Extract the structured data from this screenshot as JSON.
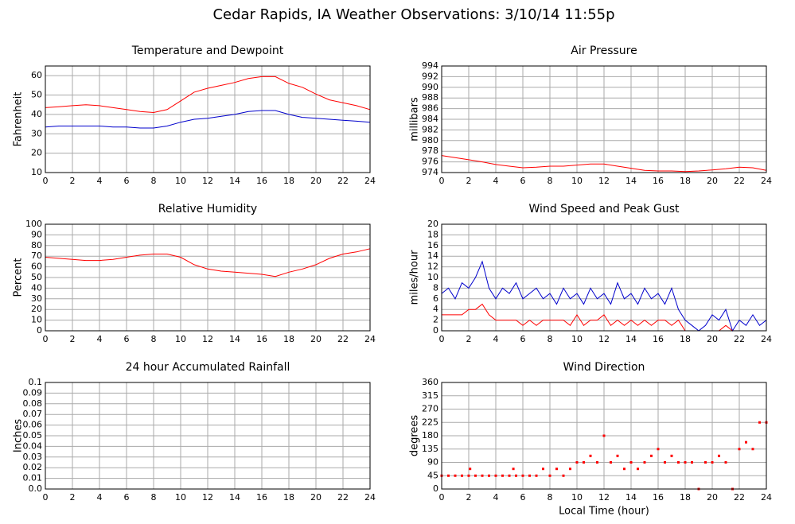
{
  "title": "Cedar Rapids, IA Weather Observations: 3/10/14 11:55p",
  "chart_data": [
    {
      "type": "line",
      "title": "Temperature and Dewpoint",
      "ylabel": "Fahrenheit",
      "x": [
        0,
        1,
        2,
        3,
        4,
        5,
        6,
        7,
        8,
        9,
        10,
        11,
        12,
        13,
        14,
        15,
        16,
        17,
        18,
        19,
        20,
        21,
        22,
        23,
        24
      ],
      "series": [
        {
          "color": "#ff0000",
          "values": [
            43.5,
            44,
            44.5,
            45,
            44.5,
            43.5,
            42.5,
            41.5,
            41,
            42.5,
            47,
            51.5,
            53.5,
            55,
            56.5,
            58.5,
            59.5,
            59.5,
            56,
            54,
            50.5,
            47.5,
            46,
            44.5,
            42.5
          ]
        },
        {
          "color": "#0000cc",
          "values": [
            33.5,
            34,
            34,
            34,
            34,
            33.5,
            33.5,
            33,
            33,
            34,
            36,
            37.5,
            38,
            39,
            40,
            41.5,
            42,
            42,
            40,
            38.5,
            38,
            37.5,
            37,
            36.5,
            36
          ]
        }
      ],
      "xlim": [
        0,
        24
      ],
      "xticks": [
        0,
        2,
        4,
        6,
        8,
        10,
        12,
        14,
        16,
        18,
        20,
        22,
        24
      ],
      "ylim": [
        10,
        65
      ],
      "yticks": [
        10,
        20,
        30,
        40,
        50,
        60
      ],
      "grid": true
    },
    {
      "type": "line",
      "title": "Air Pressure",
      "ylabel": "millibars",
      "x": [
        0,
        1,
        2,
        3,
        4,
        5,
        6,
        7,
        8,
        9,
        10,
        11,
        12,
        13,
        14,
        15,
        16,
        17,
        18,
        19,
        20,
        21,
        22,
        23,
        24
      ],
      "series": [
        {
          "color": "#ff0000",
          "values": [
            977.2,
            976.8,
            976.4,
            976,
            975.5,
            975.2,
            974.9,
            975,
            975.2,
            975.2,
            975.4,
            975.6,
            975.6,
            975.2,
            974.8,
            974.4,
            974.3,
            974.3,
            974.2,
            974.3,
            974.5,
            974.7,
            975,
            974.9,
            974.4
          ]
        }
      ],
      "xlim": [
        0,
        24
      ],
      "xticks": [
        0,
        2,
        4,
        6,
        8,
        10,
        12,
        14,
        16,
        18,
        20,
        22,
        24
      ],
      "ylim": [
        974,
        994
      ],
      "yticks": [
        974,
        976,
        978,
        980,
        982,
        984,
        986,
        988,
        990,
        992,
        994
      ],
      "grid": true
    },
    {
      "type": "line",
      "title": "Relative Humidity",
      "ylabel": "Percent",
      "x": [
        0,
        1,
        2,
        3,
        4,
        5,
        6,
        7,
        8,
        9,
        10,
        11,
        12,
        13,
        14,
        15,
        16,
        17,
        18,
        19,
        20,
        21,
        22,
        23,
        24
      ],
      "series": [
        {
          "color": "#ff0000",
          "values": [
            69,
            68,
            67,
            66,
            66,
            67,
            69,
            71,
            72,
            72,
            69,
            62,
            58,
            56,
            55,
            54,
            53,
            51,
            55,
            58,
            62,
            68,
            72,
            74,
            77
          ]
        }
      ],
      "xlim": [
        0,
        24
      ],
      "xticks": [
        0,
        2,
        4,
        6,
        8,
        10,
        12,
        14,
        16,
        18,
        20,
        22,
        24
      ],
      "ylim": [
        0,
        100
      ],
      "yticks": [
        0,
        10,
        20,
        30,
        40,
        50,
        60,
        70,
        80,
        90,
        100
      ],
      "grid": true
    },
    {
      "type": "line",
      "title": "Wind Speed and Peak Gust",
      "ylabel": "miles/hour",
      "x": [
        0,
        0.5,
        1,
        1.5,
        2,
        2.5,
        3,
        3.5,
        4,
        4.5,
        5,
        5.5,
        6,
        6.5,
        7,
        7.5,
        8,
        8.5,
        9,
        9.5,
        10,
        10.5,
        11,
        11.5,
        12,
        12.5,
        13,
        13.5,
        14,
        14.5,
        15,
        15.5,
        16,
        16.5,
        17,
        17.5,
        18,
        18.5,
        19,
        19.5,
        20,
        20.5,
        21,
        21.5,
        22,
        22.5,
        23,
        23.5,
        24
      ],
      "series": [
        {
          "color": "#0000cc",
          "values": [
            7,
            8,
            6,
            9,
            8,
            10,
            13,
            8,
            6,
            8,
            7,
            9,
            6,
            7,
            8,
            6,
            7,
            5,
            8,
            6,
            7,
            5,
            8,
            6,
            7,
            5,
            9,
            6,
            7,
            5,
            8,
            6,
            7,
            5,
            8,
            4,
            2,
            1,
            0,
            1,
            3,
            2,
            4,
            0,
            2,
            1,
            3,
            1,
            2
          ]
        },
        {
          "color": "#ff0000",
          "values": [
            3,
            3,
            3,
            3,
            4,
            4,
            5,
            3,
            2,
            2,
            2,
            2,
            1,
            2,
            1,
            2,
            2,
            2,
            2,
            1,
            3,
            1,
            2,
            2,
            3,
            1,
            2,
            1,
            2,
            1,
            2,
            1,
            2,
            2,
            1,
            2,
            0,
            0,
            0,
            0,
            0,
            0,
            1,
            0,
            0,
            0,
            0,
            0,
            0
          ]
        }
      ],
      "xlim": [
        0,
        24
      ],
      "xticks": [
        0,
        2,
        4,
        6,
        8,
        10,
        12,
        14,
        16,
        18,
        20,
        22,
        24
      ],
      "ylim": [
        0,
        20
      ],
      "yticks": [
        0,
        2,
        4,
        6,
        8,
        10,
        12,
        14,
        16,
        18,
        20
      ],
      "grid": true
    },
    {
      "type": "line",
      "title": "24 hour Accumulated Rainfall",
      "ylabel": "Inches",
      "x": [
        0,
        24
      ],
      "series": [
        {
          "color": "#ff3366",
          "values": [
            0,
            0
          ]
        }
      ],
      "xlim": [
        0,
        24
      ],
      "xticks": [
        0,
        2,
        4,
        6,
        8,
        10,
        12,
        14,
        16,
        18,
        20,
        22,
        24
      ],
      "ylim": [
        0,
        0.1
      ],
      "yticks": [
        {
          "value": 0,
          "label": "0.0"
        },
        0.01,
        0.02,
        0.03,
        0.04,
        0.05,
        0.06,
        0.07,
        0.08,
        0.09,
        0.1
      ],
      "grid": true
    },
    {
      "type": "scatter",
      "title": "Wind Direction",
      "ylabel": "degrees",
      "xlabel": "Local Time (hour)",
      "x": [
        0,
        0.5,
        1,
        1.5,
        2,
        2.1,
        2.5,
        3,
        3.5,
        4,
        4.5,
        5,
        5.3,
        5.5,
        6,
        6.5,
        7,
        7.5,
        8,
        8.5,
        9,
        9.5,
        10,
        10.5,
        11,
        11.5,
        12,
        12.5,
        13,
        13.5,
        14,
        14.5,
        15,
        15.5,
        16,
        16.5,
        17,
        17.5,
        18,
        18.5,
        19,
        19.5,
        20,
        20.5,
        21,
        21.5,
        22,
        22.5,
        23,
        23.5,
        24
      ],
      "series": [
        {
          "color": "#ff0000",
          "values": [
            45,
            45,
            45,
            45,
            45,
            68,
            45,
            45,
            45,
            45,
            45,
            45,
            68,
            45,
            45,
            45,
            45,
            68,
            45,
            68,
            45,
            68,
            90,
            90,
            112,
            90,
            180,
            90,
            112,
            68,
            90,
            68,
            90,
            112,
            135,
            90,
            112,
            90,
            90,
            90,
            0,
            90,
            90,
            112,
            90,
            0,
            135,
            158,
            135,
            225,
            225
          ]
        }
      ],
      "xlim": [
        0,
        24
      ],
      "xticks": [
        0,
        2,
        4,
        6,
        8,
        10,
        12,
        14,
        16,
        18,
        20,
        22,
        24
      ],
      "ylim": [
        0,
        360
      ],
      "yticks": [
        0,
        45,
        90,
        135,
        180,
        225,
        270,
        315,
        360
      ],
      "grid": true
    }
  ]
}
